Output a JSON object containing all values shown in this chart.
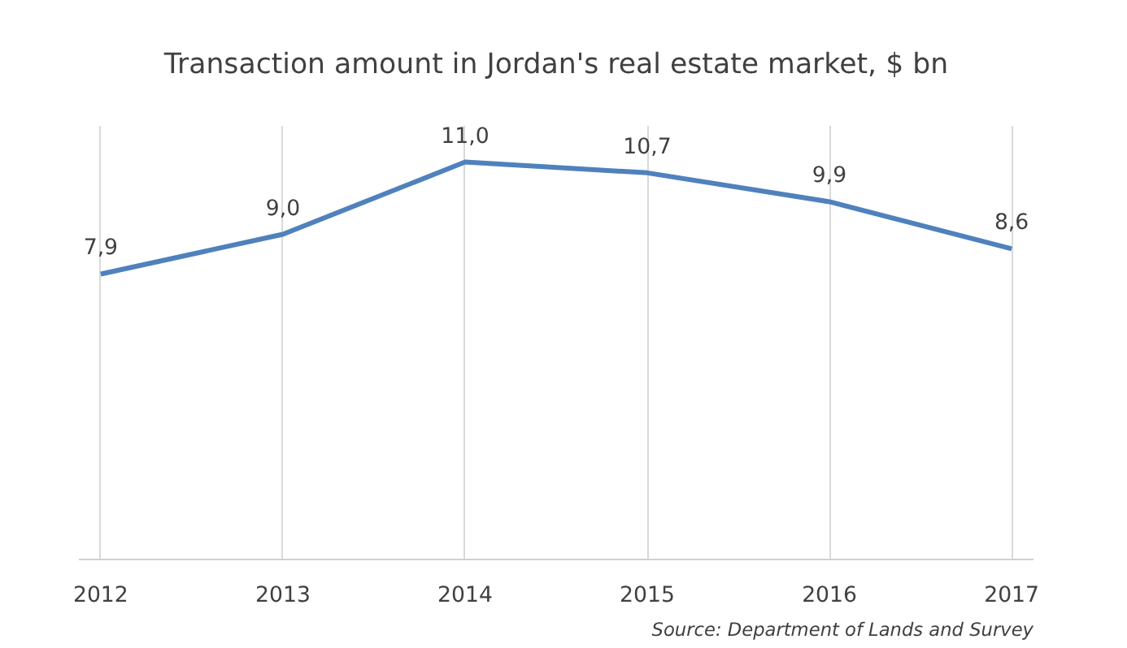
{
  "chart_data": {
    "type": "line",
    "title": "Transaction amount in Jordan's real estate market, $ bn",
    "categories": [
      "2012",
      "2013",
      "2014",
      "2015",
      "2016",
      "2017"
    ],
    "series": [
      {
        "color": "#4f81bd",
        "values": [
          7.9,
          9.0,
          11.0,
          10.7,
          9.9,
          8.6
        ],
        "value_labels": [
          "7,9",
          "9,0",
          "11,0",
          "10,7",
          "9,9",
          "8,6"
        ]
      }
    ],
    "ylim": [
      0,
      12
    ],
    "grid": "x",
    "tick_labels": "x",
    "marker": "none",
    "line_style": "solid",
    "annotations": [
      "Source: Department of Lands and Survey"
    ]
  }
}
